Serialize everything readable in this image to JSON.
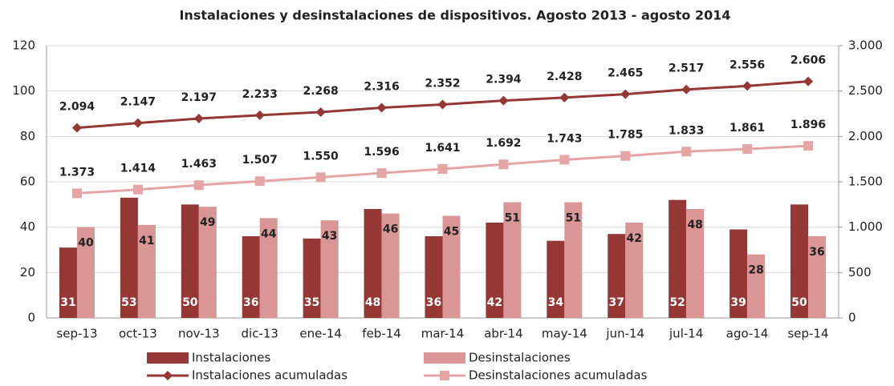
{
  "chart_data": {
    "type": "bar",
    "title": "Instalaciones y desinstalaciones de dispositivos. Agosto 2013 - agosto 2014",
    "categories": [
      "sep-13",
      "oct-13",
      "nov-13",
      "dic-13",
      "ene-14",
      "feb-14",
      "mar-14",
      "abr-14",
      "may-14",
      "jun-14",
      "jul-14",
      "ago-14",
      "sep-14"
    ],
    "series": [
      {
        "name": "Instalaciones",
        "type": "bar",
        "color": "#953735",
        "values": [
          31,
          53,
          50,
          36,
          35,
          48,
          36,
          42,
          34,
          37,
          52,
          39,
          50
        ]
      },
      {
        "name": "Desinstalaciones",
        "type": "bar",
        "color": "#d99694",
        "values": [
          40,
          41,
          49,
          44,
          43,
          46,
          45,
          51,
          51,
          42,
          48,
          28,
          36
        ]
      },
      {
        "name": "Instalaciones acumuladas",
        "type": "line",
        "axis": "y2",
        "marker": "diamond",
        "color": "#953735",
        "values": [
          2094,
          2147,
          2197,
          2233,
          2268,
          2316,
          2352,
          2394,
          2428,
          2465,
          2517,
          2556,
          2606
        ],
        "value_labels": [
          "2.094",
          "2.147",
          "2.197",
          "2.233",
          "2.268",
          "2.316",
          "2.352",
          "2.394",
          "2.428",
          "2.465",
          "2.517",
          "2.556",
          "2.606"
        ]
      },
      {
        "name": "Desinstalaciones acumuladas",
        "type": "line",
        "axis": "y2",
        "marker": "square",
        "color": "#e6a5a5",
        "values": [
          1373,
          1414,
          1463,
          1507,
          1550,
          1596,
          1641,
          1692,
          1743,
          1785,
          1833,
          1861,
          1896
        ],
        "value_labels": [
          "1.373",
          "1.414",
          "1.463",
          "1.507",
          "1.550",
          "1.596",
          "1.641",
          "1.692",
          "1.743",
          "1.785",
          "1.833",
          "1.861",
          "1.896"
        ]
      }
    ],
    "ylim": [
      0,
      120
    ],
    "yticks": [
      0,
      20,
      40,
      60,
      80,
      100,
      120
    ],
    "y2lim": [
      0,
      3000
    ],
    "y2ticks": [
      0,
      500,
      {
        "value": 1000,
        "label": "1.000"
      },
      {
        "value": 1500,
        "label": "1.500"
      },
      {
        "value": 2000,
        "label": "2.000"
      },
      {
        "value": 2500,
        "label": "2.500"
      },
      {
        "value": 3000,
        "label": "3.000"
      }
    ],
    "grid": true
  }
}
